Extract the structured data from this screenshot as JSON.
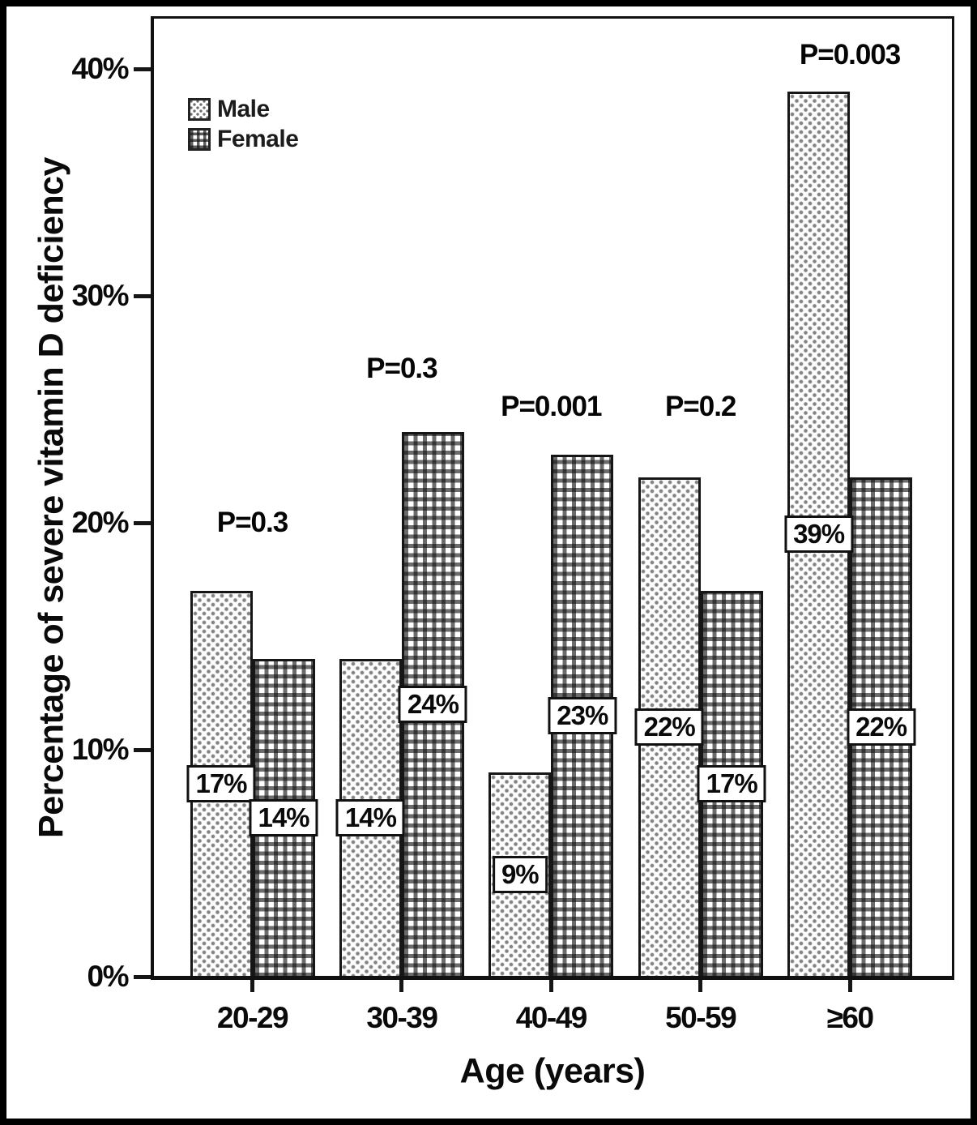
{
  "figure": {
    "background": "#ffffff",
    "frame_color": "#000000",
    "ink_color": "#0a0a0a"
  },
  "legend": {
    "position": "top-left",
    "items": [
      {
        "label": "Male",
        "swatch": "dotted-pattern-swatch"
      },
      {
        "label": "Female",
        "swatch": "checkered-pattern-swatch"
      }
    ]
  },
  "chart_data": {
    "type": "bar",
    "title": "",
    "xlabel": "Age (years)",
    "ylabel": "Percentage of severe vitamin D deficiency",
    "categories": [
      "20-29",
      "30-39",
      "40-49",
      "50-59",
      "≥60"
    ],
    "series": [
      {
        "name": "Male",
        "pattern": "dots",
        "values": [
          17,
          14,
          9,
          22,
          39
        ],
        "labels": [
          "17%",
          "14%",
          "9%",
          "22%",
          "39%"
        ]
      },
      {
        "name": "Female",
        "pattern": "checker",
        "values": [
          14,
          24,
          23,
          17,
          22
        ],
        "labels": [
          "14%",
          "24%",
          "23%",
          "17%",
          "22%"
        ]
      }
    ],
    "p_annotations": [
      {
        "label": "P=0.3",
        "level": 20.0
      },
      {
        "label": "P=0.3",
        "level": 26.8
      },
      {
        "label": "P=0.001",
        "level": 25.1
      },
      {
        "label": "P=0.2",
        "level": 25.1
      },
      {
        "label": "P=0.003",
        "level": 40.6
      }
    ],
    "y_ticks": [
      {
        "value": 0,
        "label": "0%"
      },
      {
        "value": 10,
        "label": "10%"
      },
      {
        "value": 20,
        "label": "20%"
      },
      {
        "value": 30,
        "label": "30%"
      },
      {
        "value": 40,
        "label": "40%"
      }
    ],
    "ylim": [
      0,
      42.3
    ],
    "grid": false,
    "legend_position": "top-left"
  }
}
